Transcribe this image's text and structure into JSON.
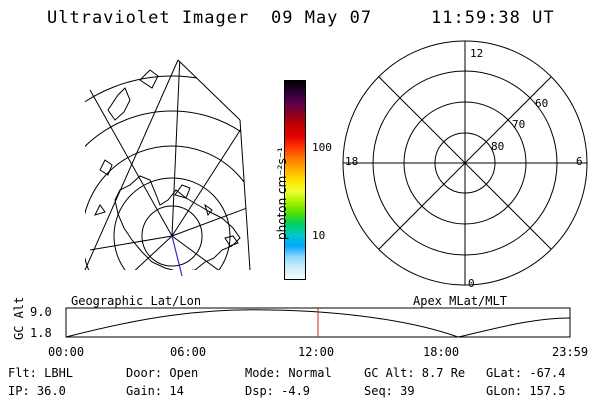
{
  "header": {
    "title": "Ultraviolet Imager",
    "date": "09 May 07",
    "time": "11:59:38 UT"
  },
  "colorbar": {
    "unit_label": "photon cm⁻²s⁻¹",
    "tick_100": "100",
    "tick_10": "10",
    "colors": [
      "#000000",
      "#2b0033",
      "#5a0050",
      "#8a0020",
      "#c00000",
      "#e00000",
      "#ff3300",
      "#ff7700",
      "#ffaa00",
      "#ffe000",
      "#f0ff30",
      "#a8f000",
      "#50e000",
      "#00d060",
      "#00c8c8",
      "#00a8ff",
      "#90d8ff",
      "#d0eef8",
      "#f2fafc"
    ]
  },
  "polar_plot": {
    "noon_label": "12",
    "dusk_label": "18",
    "dawn_label": "6",
    "midnight_label": "0",
    "lat_60": "60",
    "lat_70": "70",
    "lat_80": "80"
  },
  "timeline": {
    "left_title": "Geographic Lat/Lon",
    "right_title": "Apex MLat/MLT",
    "y_axis_label": "GC Alt",
    "y_top": "9.0",
    "y_bottom": "1.8",
    "x_ticks": [
      "00:00",
      "06:00",
      "12:00",
      "18:00",
      "23:59"
    ],
    "current_time_fraction": 0.5,
    "marker_color": "#d02020"
  },
  "status": {
    "row1": {
      "flt": "Flt: LBHL",
      "door": "Door: Open",
      "mode": "Mode: Normal",
      "gc_alt": "GC Alt: 8.7 Re",
      "glat": "GLat: -67.4"
    },
    "row2": {
      "ip": "IP: 36.0",
      "gain": "Gain: 14",
      "dsp": "Dsp:   -4.9",
      "seq": "Seq: 39",
      "glon": "GLon: 157.5"
    }
  }
}
